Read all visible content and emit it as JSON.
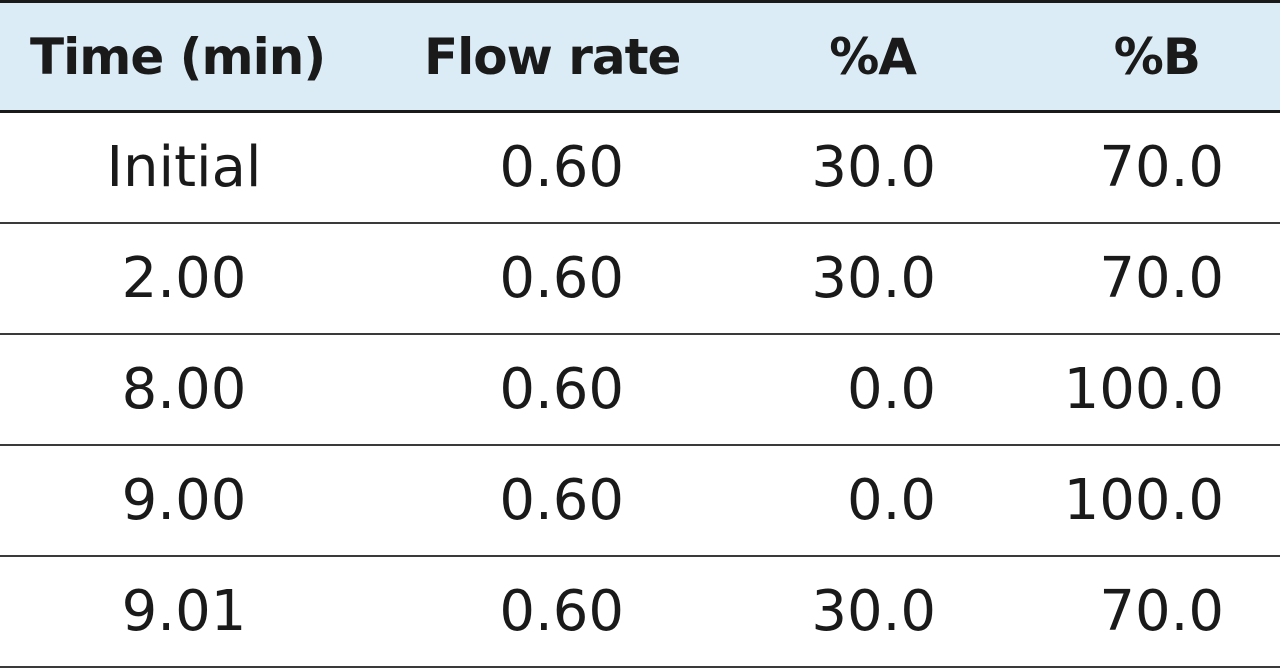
{
  "table": {
    "headers": [
      "Time (min)",
      "Flow rate",
      "%A",
      "%B"
    ],
    "rows": [
      [
        "Initial",
        "0.60",
        "30.0",
        "70.0"
      ],
      [
        "2.00",
        "0.60",
        "30.0",
        "70.0"
      ],
      [
        "8.00",
        "0.60",
        "0.0",
        "100.0"
      ],
      [
        "9.00",
        "0.60",
        "0.0",
        "100.0"
      ],
      [
        "9.01",
        "0.60",
        "30.0",
        "70.0"
      ]
    ]
  },
  "colors": {
    "header_background": "#dcecf6",
    "text": "#1a1a1a",
    "rule": "#1a1a1a"
  }
}
